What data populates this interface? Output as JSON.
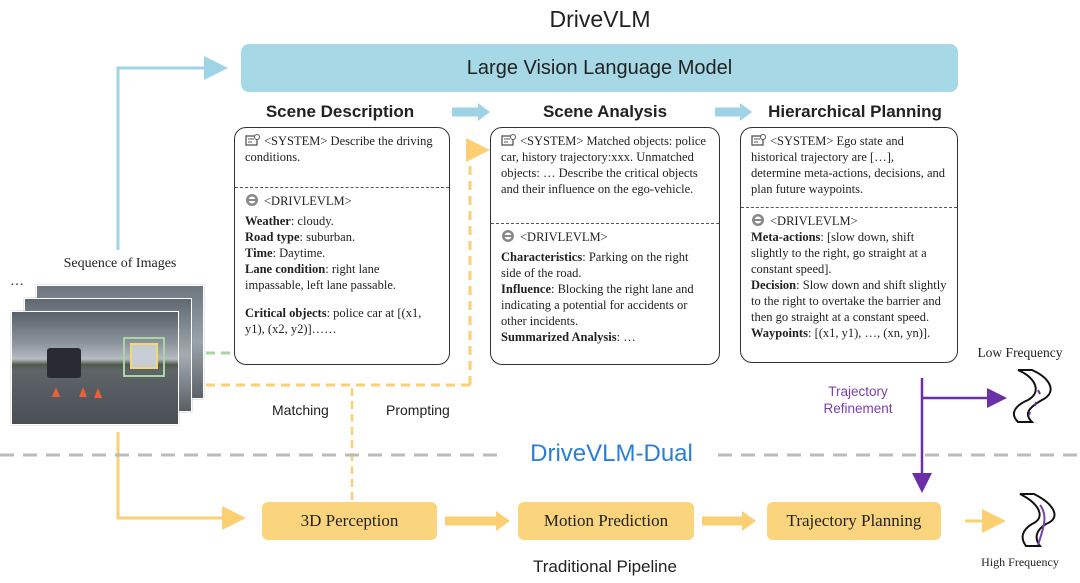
{
  "title": "DriveVLM",
  "lvlm_label": "Large Vision Language Model",
  "stages": {
    "scene_description": "Scene Description",
    "scene_analysis": "Scene Analysis",
    "hierarchical_planning": "Hierarchical Planning"
  },
  "box1": {
    "system": "<SYSTEM> Describe the driving conditions.",
    "agent": "<DRIVLEVLM>",
    "items": [
      {
        "k": "Weather",
        "v": ": cloudy."
      },
      {
        "k": "Road type",
        "v": ": suburban."
      },
      {
        "k": "Time",
        "v": ": Daytime."
      },
      {
        "k": "Lane condition",
        "v": ": right lane impassable, left lane passable."
      },
      {
        "k": "Critical objects",
        "v": ": police car at [(x1, y1), (x2, y2)]……"
      }
    ]
  },
  "box2": {
    "system": "<SYSTEM> Matched objects: police car, history trajectory:xxx. Unmatched objects: … Describe the critical objects and their influence on the ego-vehicle.",
    "agent": "<DRIVLEVLM>",
    "items": [
      {
        "k": "Characteristics",
        "v": ": Parking on the right side of the road."
      },
      {
        "k": "Influence",
        "v": ": Blocking the right lane and indicating a potential for accidents or other incidents."
      },
      {
        "k": "Summarized Analysis",
        "v": ": …"
      }
    ]
  },
  "box3": {
    "system": "<SYSTEM> Ego state and historical trajectory are […], determine meta-actions, decisions, and plan future waypoints.",
    "agent": "<DRIVLEVLM>",
    "items": [
      {
        "k": "Meta-actions",
        "v": ": [slow down, shift slightly to the right, go straight at a constant speed]."
      },
      {
        "k": "Decision",
        "v": ": Slow down and shift slightly to the right to overtake the barrier and then go straight at a constant speed."
      },
      {
        "k": "Waypoints",
        "v": ": [(x1, y1), …, (xn, yn)]."
      }
    ]
  },
  "sequence_label": "Sequence of Images",
  "ellipsis": "…",
  "matching": "Matching",
  "prompting": "Prompting",
  "dual_label": "DriveVLM-Dual",
  "trajectory_refinement": "Trajectory Refinement",
  "low_frequency": "Low Frequency",
  "high_frequency": "High Frequency",
  "pipeline": {
    "perception": "3D Perception",
    "motion": "Motion Prediction",
    "planning": "Trajectory Planning",
    "label": "Traditional Pipeline"
  },
  "colors": {
    "lvlm": "#a6d8e6",
    "pipeline": "#fbd47e",
    "dual": "#2a7fd4",
    "refinement": "#7a3fb0",
    "matching": "#a8d5a2"
  }
}
